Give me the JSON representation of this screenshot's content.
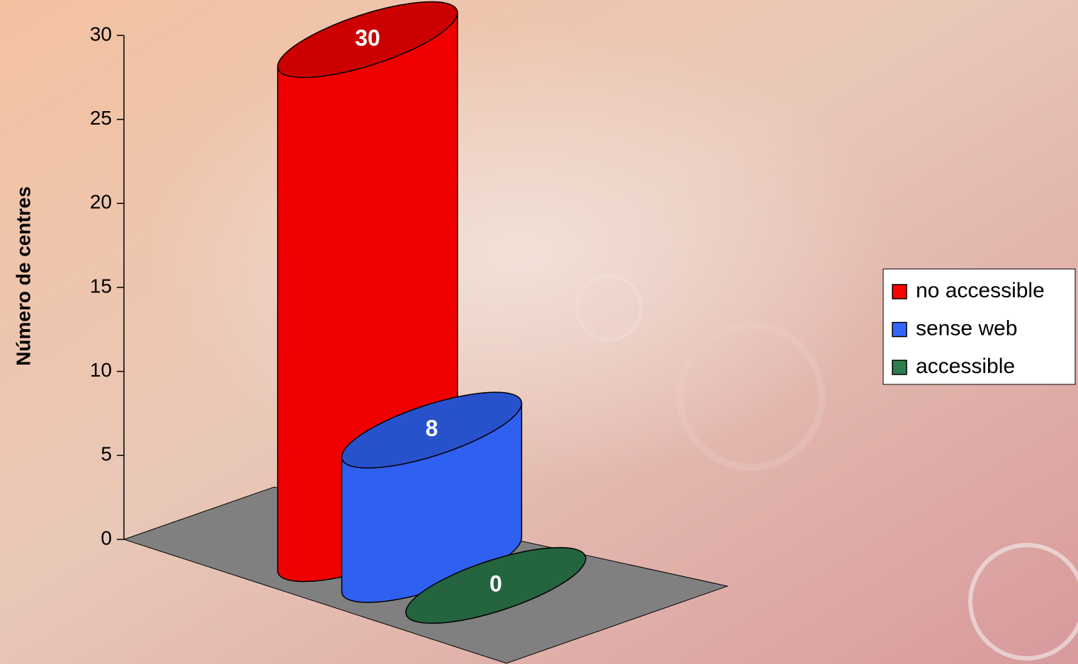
{
  "chart_data": {
    "type": "cylinder3d",
    "y_label": "Número de centres",
    "ylim": [
      0,
      30
    ],
    "yticks": [
      0,
      5,
      10,
      15,
      20,
      25,
      30
    ],
    "legend": "right",
    "series": [
      {
        "name": "no accessible",
        "color": "#ff0000",
        "values": [
          30
        ]
      },
      {
        "name": "sense web",
        "color": "#3366ff",
        "values": [
          8
        ]
      },
      {
        "name": "accessible",
        "color": "#2e7d4f",
        "values": [
          0
        ]
      }
    ]
  }
}
